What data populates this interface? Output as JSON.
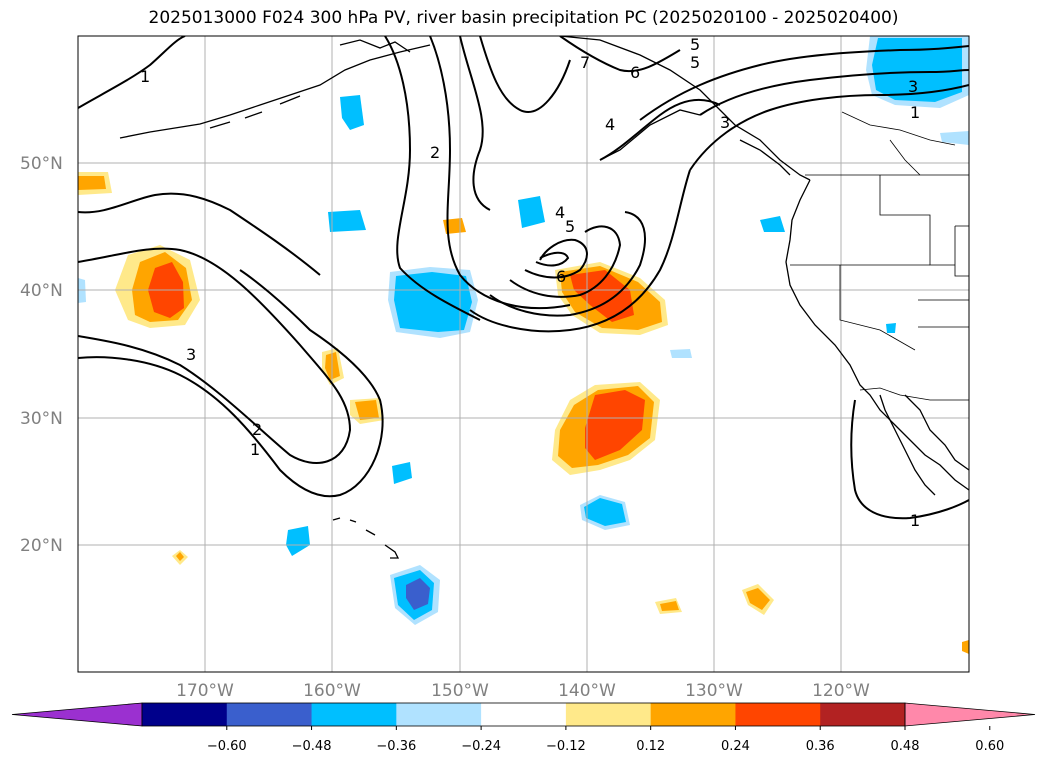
{
  "title": "2025013000 F024 300 hPa PV, river basin precipitation PC (2025020100 - 2025020400)",
  "axes": {
    "lat_labels": [
      "50°N",
      "40°N",
      "30°N",
      "20°N"
    ],
    "lon_labels": [
      "170°W",
      "160°W",
      "150°W",
      "140°W",
      "130°W",
      "120°W"
    ]
  },
  "colorbar": {
    "ticks": [
      "−0.60",
      "−0.48",
      "−0.36",
      "−0.24",
      "−0.12",
      "0.12",
      "0.24",
      "0.36",
      "0.48",
      "0.60"
    ],
    "colors": [
      "#9b30d0",
      "#00008b",
      "#3a5fcd",
      "#00bfff",
      "#b0e2ff",
      "#ffffff",
      "#ffe98a",
      "#ffa500",
      "#ff4500",
      "#b22222",
      "#ff88aa"
    ]
  },
  "pv_contour_labels": [
    "1",
    "2",
    "3",
    "4",
    "5",
    "6",
    "7",
    "4",
    "5",
    "6",
    "3",
    "2",
    "1",
    "1",
    "1",
    "3",
    "5"
  ],
  "colors": {
    "grid": "#b0b0b0",
    "coast": "#000000",
    "contour": "#000000"
  }
}
